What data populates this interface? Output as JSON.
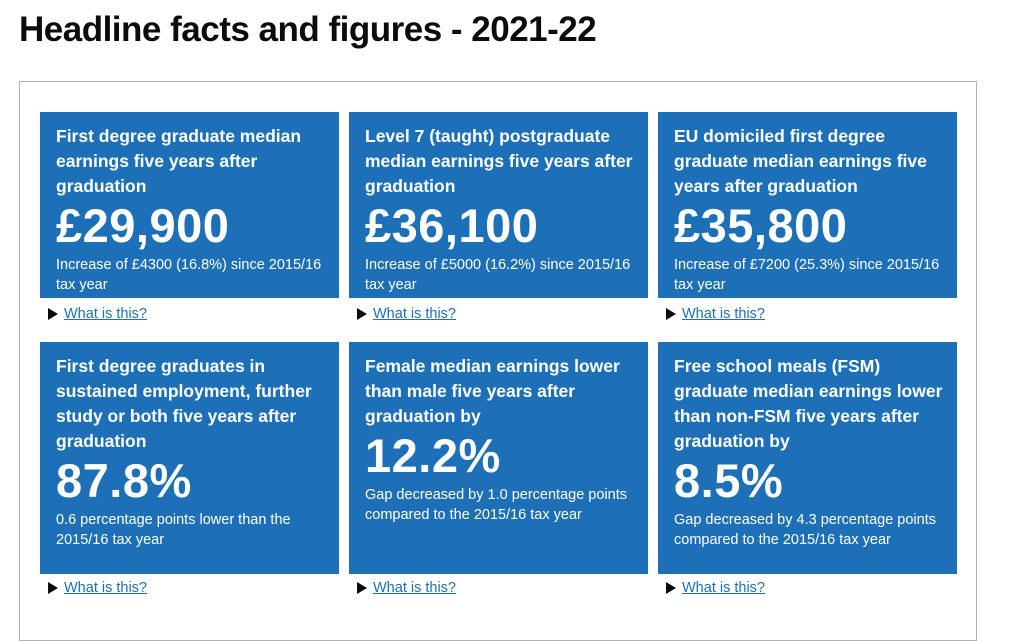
{
  "page": {
    "title": "Headline facts and figures - 2021-22"
  },
  "tiles": [
    {
      "title": "First degree graduate median earnings five years after graduation",
      "value": "£29,900",
      "desc": "Increase of £4300 (16.8%) since 2015/16 tax year",
      "link": "What is this?"
    },
    {
      "title": "Level 7 (taught) postgraduate median earnings five years after graduation",
      "value": "£36,100",
      "desc": "Increase of £5000 (16.2%) since 2015/16 tax year",
      "link": "What is this?"
    },
    {
      "title": "EU domiciled first degree graduate median earnings five years after graduation",
      "value": "£35,800",
      "desc": "Increase of £7200 (25.3%) since 2015/16 tax year",
      "link": "What is this?"
    },
    {
      "title": "First degree graduates in sustained employment, further study or both five years after graduation",
      "value": "87.8%",
      "desc": "0.6 percentage points lower than the 2015/16 tax year",
      "link": "What is this?"
    },
    {
      "title": "Female median earnings lower than male five years after graduation by",
      "value": "12.2%",
      "desc": "Gap decreased by 1.0 percentage points compared to the 2015/16 tax year",
      "link": "What is this?"
    },
    {
      "title": "Free school meals (FSM) graduate median earnings lower than non-FSM five years after graduation by",
      "value": "8.5%",
      "desc": "Gap decreased by 4.3 percentage points compared to the 2015/16 tax year",
      "link": "What is this?"
    }
  ],
  "colors": {
    "tile_background": "#1d70b8",
    "tile_text": "#ffffff",
    "link": "#1d70b8",
    "heading": "#0b0c0c"
  },
  "icons": {
    "details_toggle": "triangle-right-icon"
  }
}
